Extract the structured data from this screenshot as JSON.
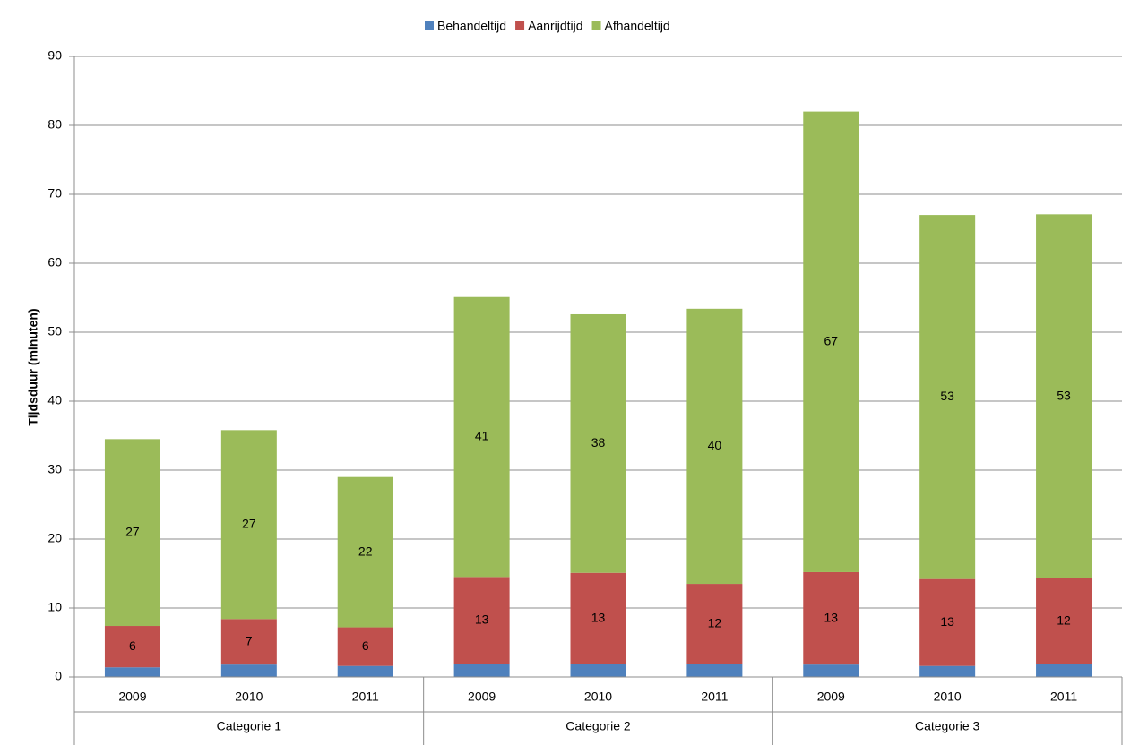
{
  "chart_data": {
    "type": "stacked-bar",
    "y_label": "Tijdsduur (minuten)",
    "categories": [
      "2009",
      "2010",
      "2011",
      "2009",
      "2010",
      "2011",
      "2009",
      "2010",
      "2011"
    ],
    "groups": [
      "Categorie 1",
      "Categorie 2",
      "Categorie 3"
    ],
    "series": [
      {
        "name": "Behandeltijd",
        "color": "#4f81bd",
        "values": [
          1.4,
          1.8,
          1.6,
          1.9,
          1.9,
          1.9,
          1.8,
          1.6,
          1.9
        ]
      },
      {
        "name": "Aanrijdtijd",
        "color": "#c0504d",
        "values": [
          6.0,
          6.6,
          5.6,
          12.6,
          13.2,
          11.6,
          13.4,
          12.6,
          12.4
        ],
        "value_labels": [
          "6",
          "7",
          "6",
          "13",
          "13",
          "12",
          "13",
          "13",
          "12"
        ]
      },
      {
        "name": "Afhandeltijd",
        "color": "#9bbb59",
        "values": [
          27.1,
          27.4,
          21.8,
          40.6,
          37.5,
          39.9,
          66.8,
          52.8,
          52.8
        ],
        "value_labels": [
          "27",
          "27",
          "22",
          "41",
          "38",
          "40",
          "67",
          "53",
          "53"
        ]
      }
    ],
    "ylim": [
      0,
      90
    ],
    "yticks": [
      0,
      10,
      20,
      30,
      40,
      50,
      60,
      70,
      80,
      90
    ],
    "grid": true,
    "legend": "top"
  }
}
